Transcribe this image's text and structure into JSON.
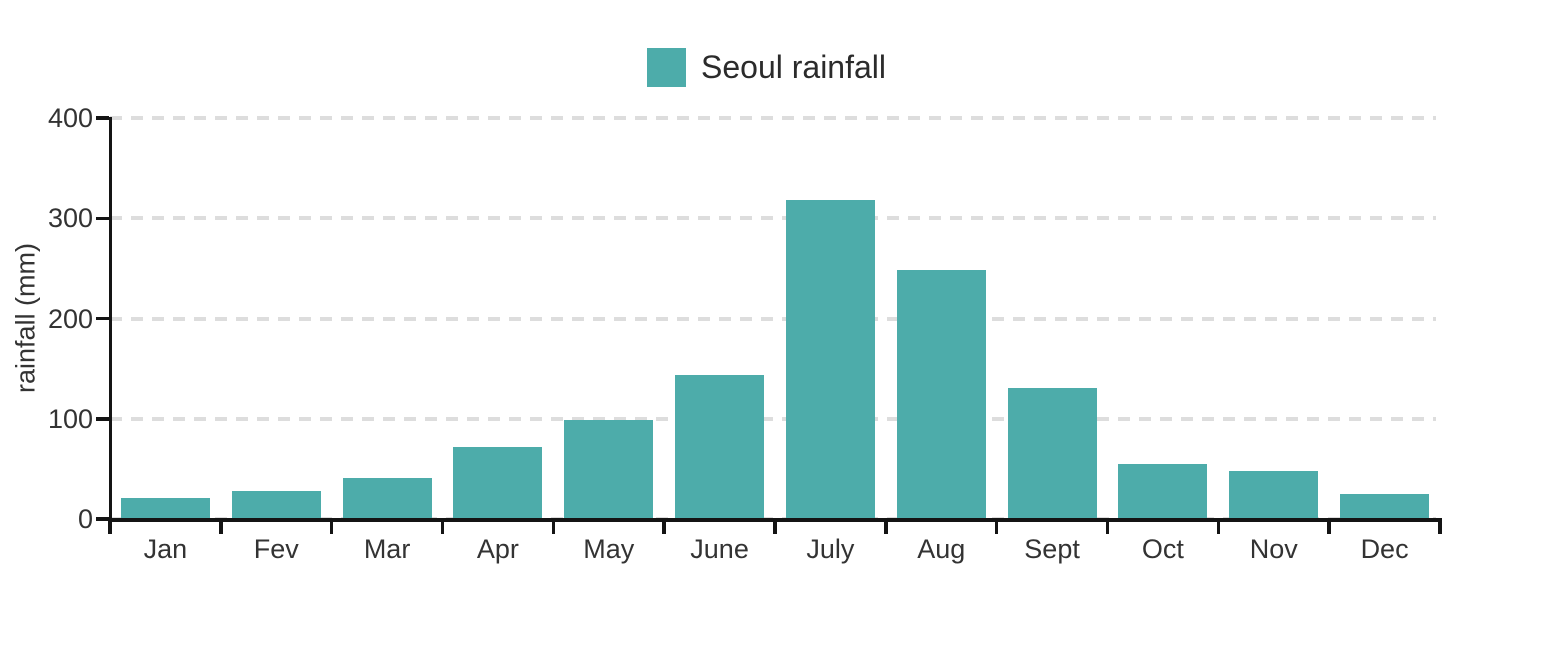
{
  "legend": {
    "label": "Seoul rainfall"
  },
  "colors": {
    "bar": "#4dacaa",
    "grid": "#dddddd",
    "axis": "#141414",
    "text": "#333333",
    "legend_text": "#2b2b2b"
  },
  "chart_data": {
    "type": "bar",
    "title": "Seoul rainfall",
    "categories": [
      "Jan",
      "Fev",
      "Mar",
      "Apr",
      "May",
      "June",
      "July",
      "Aug",
      "Sept",
      "Oct",
      "Nov",
      "Dec"
    ],
    "values": [
      21,
      28,
      41,
      72,
      99,
      144,
      318,
      248,
      131,
      55,
      48,
      25
    ],
    "xlabel": "",
    "ylabel": "rainfall (mm)",
    "ylim": [
      0,
      400
    ],
    "yticks": [
      0,
      100,
      200,
      300,
      400
    ],
    "grid": true,
    "grid_style": "dashed",
    "legend_position": "top-center",
    "bar_color": "#4dacaa"
  }
}
